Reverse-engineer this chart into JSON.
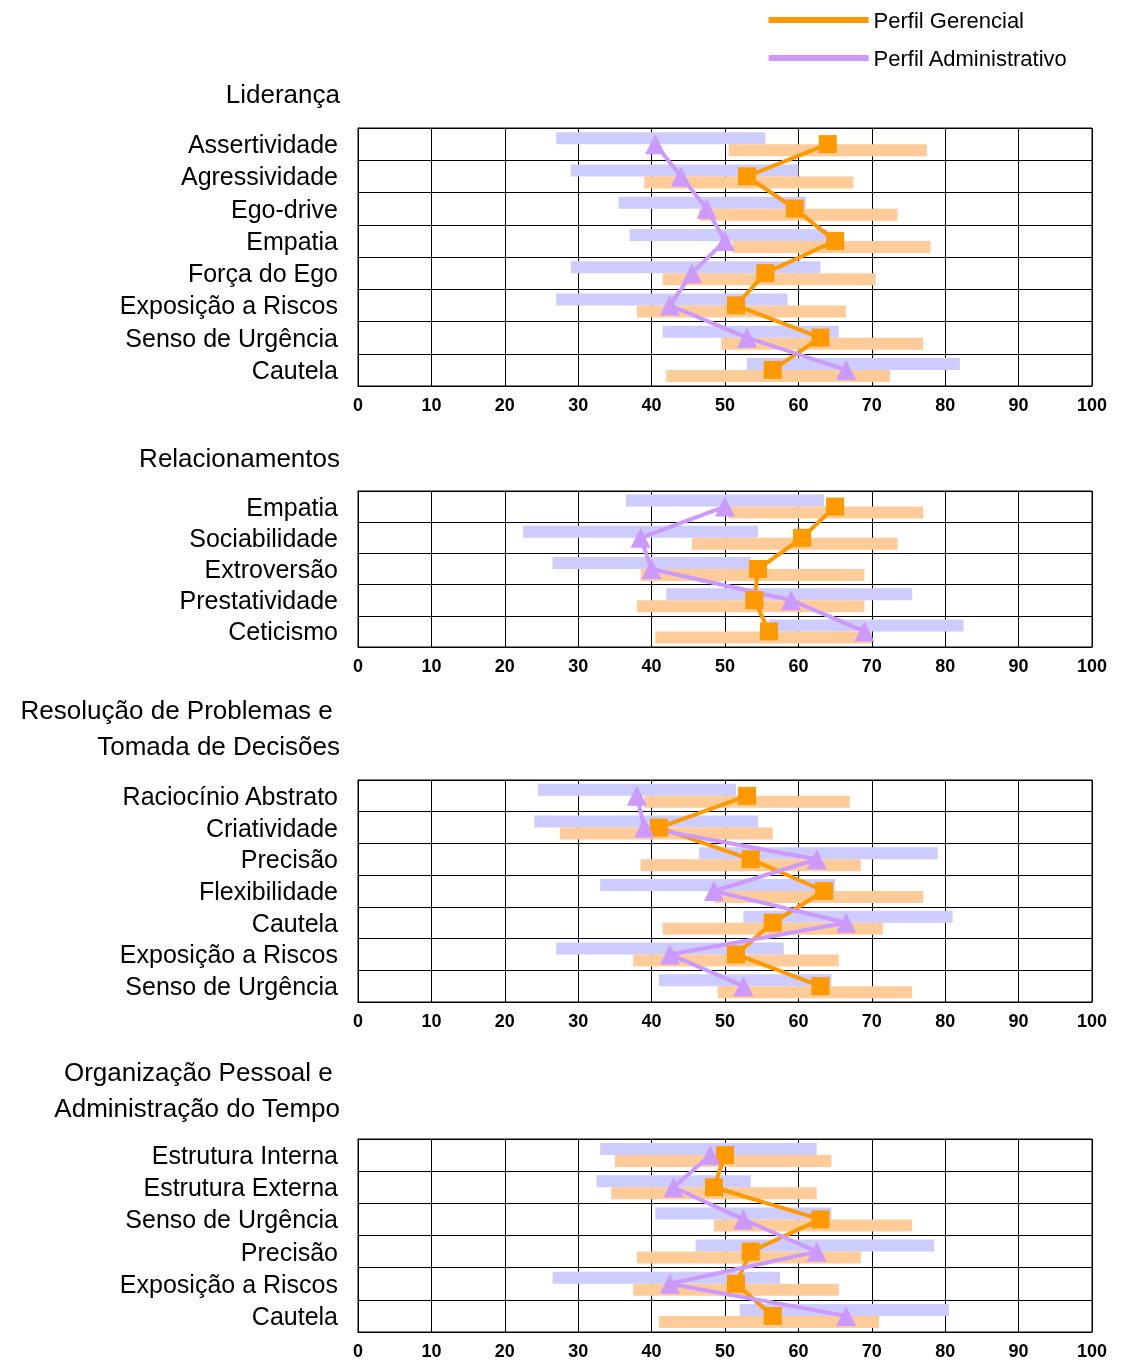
{
  "chart_data": [
    {
      "type": "line",
      "title": "Liderança",
      "orientation": "horizontal",
      "categories": [
        "Assertividade",
        "Agressividade",
        "Ego-drive",
        "Empatia",
        "Força do Ego",
        "Exposição a Riscos",
        "Senso de Urgência",
        "Cautela"
      ],
      "xlim": [
        0,
        100
      ],
      "xticks": [
        0,
        10,
        20,
        30,
        40,
        50,
        60,
        70,
        80,
        90,
        100
      ],
      "grid": true,
      "legend": "top right",
      "line_style": "solid",
      "series": [
        {
          "type": "bar",
          "color": "#ccccff",
          "base": [
            27,
            29,
            35.5,
            37,
            29,
            27,
            41.5,
            53
          ],
          "values": [
            28.5,
            31,
            25.5,
            27,
            34,
            31.5,
            24,
            29
          ]
        },
        {
          "type": "bar",
          "color": "#ffcc99",
          "base": [
            50.5,
            39,
            46.5,
            51,
            41.5,
            38,
            49.5,
            42
          ],
          "values": [
            27,
            28.5,
            27,
            27,
            29,
            28.5,
            27.5,
            30.5
          ]
        },
        {
          "name": "Perfil Gerencial",
          "color": "#ff9900",
          "marker": "square",
          "values": [
            64,
            53,
            59.5,
            65,
            55.5,
            51.5,
            63,
            56.5
          ]
        },
        {
          "name": "Perfil Administrativo",
          "color": "#cc99ff",
          "marker": "triangle",
          "values": [
            40.5,
            44,
            47.5,
            50,
            45.5,
            42.5,
            53,
            66.5
          ]
        }
      ]
    },
    {
      "type": "line",
      "title": "Relacionamentos",
      "orientation": "horizontal",
      "categories": [
        "Empatia",
        "Sociabilidade",
        "Extroversão",
        "Prestatividade",
        "Ceticismo"
      ],
      "xlim": [
        0,
        100
      ],
      "xticks": [
        0,
        10,
        20,
        30,
        40,
        50,
        60,
        70,
        80,
        90,
        100
      ],
      "grid": true,
      "line_style": "solid",
      "series": [
        {
          "type": "bar",
          "color": "#ccccff",
          "base": [
            36.5,
            22.5,
            26.5,
            42,
            56
          ],
          "values": [
            27,
            32,
            27,
            33.5,
            26.5
          ]
        },
        {
          "type": "bar",
          "color": "#ffcc99",
          "base": [
            50.5,
            45.5,
            38.5,
            38,
            40.5
          ],
          "values": [
            26.5,
            28,
            30.5,
            31,
            29.5
          ]
        },
        {
          "color": "#ff9900",
          "marker": "square",
          "values": [
            65,
            60.5,
            54.5,
            54,
            56
          ]
        },
        {
          "color": "#cc99ff",
          "marker": "triangle",
          "values": [
            50,
            38.5,
            40,
            59,
            69
          ]
        }
      ]
    },
    {
      "type": "line",
      "title": "Resolução de Problemas e Tomada de Decisões",
      "orientation": "horizontal",
      "categories": [
        "Raciocínio Abstrato",
        "Criatividade",
        "Precisão",
        "Flexibilidade",
        "Cautela",
        "Exposição a Riscos",
        "Senso de Urgência"
      ],
      "xlim": [
        0,
        100
      ],
      "xticks": [
        0,
        10,
        20,
        30,
        40,
        50,
        60,
        70,
        80,
        90,
        100
      ],
      "grid": true,
      "line_style": "solid",
      "series": [
        {
          "type": "bar",
          "color": "#ccccff",
          "base": [
            24.5,
            24,
            46.5,
            33,
            52.5,
            27,
            41
          ],
          "values": [
            27,
            30.5,
            32.5,
            32,
            28.5,
            31,
            23.5
          ]
        },
        {
          "type": "bar",
          "color": "#ffcc99",
          "base": [
            39,
            27.5,
            38.5,
            48.5,
            41.5,
            37.5,
            49
          ],
          "values": [
            28,
            29,
            30,
            28.5,
            30,
            28,
            26.5
          ]
        },
        {
          "color": "#ff9900",
          "marker": "square",
          "values": [
            53,
            41,
            53.5,
            63.5,
            56.5,
            51.5,
            63
          ]
        },
        {
          "color": "#cc99ff",
          "marker": "triangle",
          "values": [
            38,
            39,
            62.5,
            48.5,
            66.5,
            42.5,
            52.5
          ]
        }
      ]
    },
    {
      "type": "line",
      "title": "Organização Pessoal e Administração do Tempo",
      "orientation": "horizontal",
      "categories": [
        "Estrutura Interna",
        "Estrutura Externa",
        "Senso de Urgência",
        "Precisão",
        "Exposição a Riscos",
        "Cautela"
      ],
      "xlim": [
        0,
        100
      ],
      "xticks": [
        0,
        10,
        20,
        30,
        40,
        50,
        60,
        70,
        80,
        90,
        100
      ],
      "grid": true,
      "line_style": "solid",
      "series": [
        {
          "type": "bar",
          "color": "#ccccff",
          "base": [
            33,
            32.5,
            40.5,
            46,
            26.5,
            52
          ],
          "values": [
            29.5,
            21,
            24,
            32.5,
            31,
            28.5
          ]
        },
        {
          "type": "bar",
          "color": "#ffcc99",
          "base": [
            35,
            34.5,
            48.5,
            38,
            37.5,
            41
          ],
          "values": [
            29.5,
            28,
            27,
            30.5,
            28,
            30
          ]
        },
        {
          "color": "#ff9900",
          "marker": "square",
          "values": [
            50,
            48.5,
            63,
            53.5,
            51.5,
            56.5
          ]
        },
        {
          "color": "#cc99ff",
          "marker": "triangle",
          "values": [
            48,
            43,
            52.5,
            62.5,
            42.5,
            66.5
          ]
        }
      ]
    }
  ]
}
